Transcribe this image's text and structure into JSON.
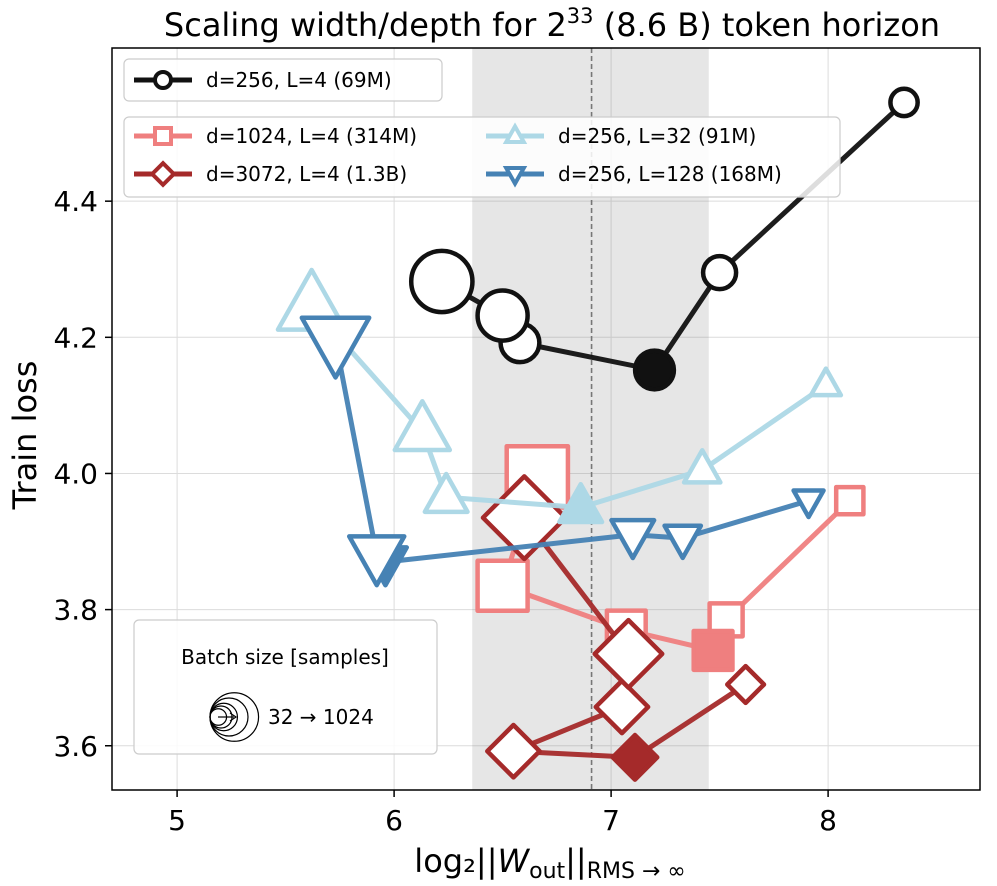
{
  "chart_data": {
    "type": "line",
    "title": {
      "main": "Scaling width/depth for 2",
      "sup": "33",
      "rest": " (8.6 B) token horizon"
    },
    "xlabel": {
      "pre": "log₂||",
      "var": "W",
      "sub1": "out",
      "mid": "||",
      "sub2": "RMS → ∞"
    },
    "ylabel": "Train loss",
    "xlim": [
      4.7,
      8.7
    ],
    "ylim": [
      3.535,
      4.625
    ],
    "xticks": [
      5,
      6,
      7,
      8
    ],
    "yticks": [
      3.6,
      3.8,
      4.0,
      4.2,
      4.4
    ],
    "xtick_labels": [
      "5",
      "6",
      "7",
      "8"
    ],
    "ytick_labels": [
      "3.6",
      "3.8",
      "4.0",
      "4.2",
      "4.4"
    ],
    "grid": true,
    "shaded_band": [
      6.36,
      7.45
    ],
    "vline": 6.91,
    "batch_size_sizes": [
      0.33,
      0.5,
      0.67,
      1.0,
      1.33
    ],
    "series": [
      {
        "name": "d=256, L=4 (69M)",
        "color": "#111111",
        "marker": "circle",
        "x": [
          8.35,
          7.5,
          7.2,
          6.58,
          6.5,
          6.22
        ],
        "y": [
          4.545,
          4.295,
          4.152,
          4.192,
          4.232,
          4.282
        ],
        "sizes": [
          0.33,
          0.5,
          0.67,
          0.67,
          1.0,
          1.33
        ],
        "best": 2
      },
      {
        "name": "d=1024, L=4 (314M)",
        "color": "#ef7f7f",
        "marker": "square",
        "x": [
          8.1,
          7.53,
          7.47,
          7.07,
          6.5,
          6.66
        ],
        "y": [
          3.96,
          3.785,
          3.74,
          3.77,
          3.835,
          3.995
        ],
        "sizes": [
          0.33,
          0.5,
          0.67,
          0.67,
          1.0,
          1.33
        ],
        "best": 2
      },
      {
        "name": "d=3072, L=4 (1.3B)",
        "color": "#a52a2a",
        "marker": "diamond",
        "x": [
          7.62,
          7.11,
          6.55,
          7.05,
          7.08,
          6.6
        ],
        "y": [
          3.69,
          3.583,
          3.592,
          3.657,
          3.735,
          3.935
        ],
        "sizes": [
          0.33,
          0.5,
          0.67,
          0.67,
          1.0,
          1.33
        ],
        "best": 1
      },
      {
        "name": "d=256, L=32 (91M)",
        "color": "#add8e6",
        "marker": "triangle-up",
        "x": [
          7.99,
          7.42,
          6.86,
          6.24,
          6.13,
          5.62
        ],
        "y": [
          4.13,
          4.005,
          3.95,
          3.965,
          4.062,
          4.245
        ],
        "sizes": [
          0.33,
          0.5,
          0.67,
          0.67,
          1.0,
          1.33
        ],
        "best": 2
      },
      {
        "name": "d=256, L=128 (168M)",
        "color": "#4682b4",
        "marker": "triangle-down",
        "x": [
          7.91,
          7.33,
          7.1,
          5.96,
          5.92,
          5.73
        ],
        "y": [
          3.96,
          3.905,
          3.91,
          3.87,
          3.88,
          4.195
        ],
        "sizes": [
          0.33,
          0.5,
          0.67,
          0.67,
          1.0,
          1.33
        ],
        "best": 3
      }
    ],
    "legend_top": [
      "d=256, L=4 (69M)"
    ],
    "legend_main": [
      "d=1024, L=4 (314M)",
      "d=256, L=32 (91M)",
      "d=3072, L=4 (1.3B)",
      "d=256, L=128 (168M)"
    ],
    "batch_legend": {
      "title": "Batch size [samples]",
      "range": "32 → 1024"
    }
  }
}
